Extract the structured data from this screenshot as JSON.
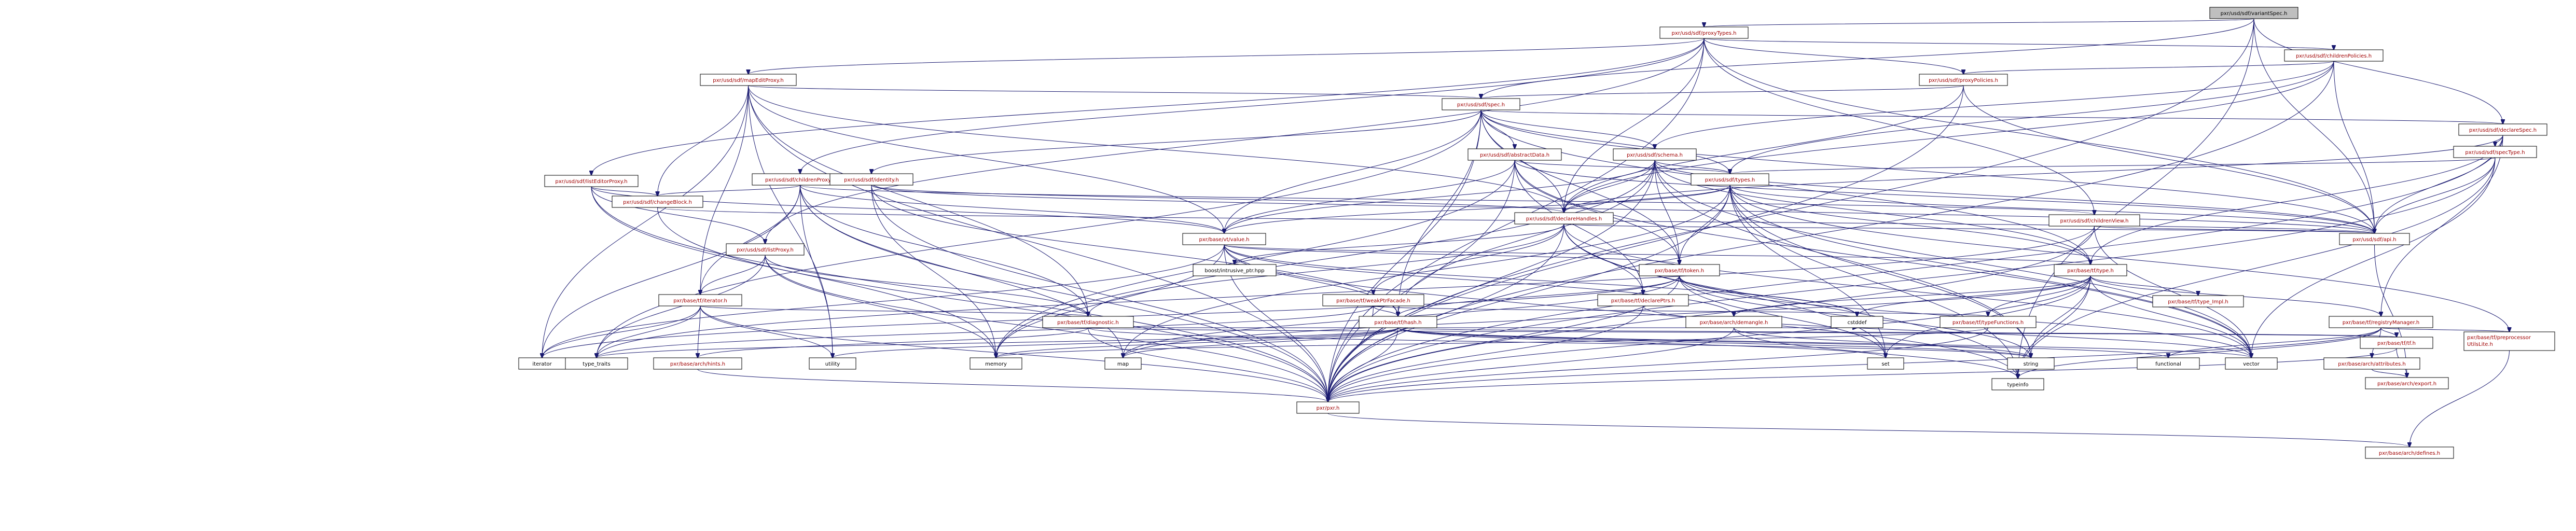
{
  "graph": {
    "root": "pxr/usd/sdf/variantSpec.h",
    "nodes": [
      {
        "id": "root",
        "label": "pxr/usd/sdf/variantSpec.h",
        "kind": "root"
      },
      {
        "id": "proxyTypes",
        "label": "pxr/usd/sdf/proxyTypes.h",
        "kind": "linked"
      },
      {
        "id": "childrenPolicies",
        "label": "pxr/usd/sdf/childrenPolicies.h",
        "kind": "linked"
      },
      {
        "id": "mapEditProxy",
        "label": "pxr/usd/sdf/mapEditProxy.h",
        "kind": "linked"
      },
      {
        "id": "proxyPolicies",
        "label": "pxr/usd/sdf/proxyPolicies.h",
        "kind": "linked"
      },
      {
        "id": "spec",
        "label": "pxr/usd/sdf/spec.h",
        "kind": "linked"
      },
      {
        "id": "declareSpec",
        "label": "pxr/usd/sdf/declareSpec.h",
        "kind": "linked"
      },
      {
        "id": "specType",
        "label": "pxr/usd/sdf/specType.h",
        "kind": "linked"
      },
      {
        "id": "abstractData",
        "label": "pxr/usd/sdf/abstractData.h",
        "kind": "linked"
      },
      {
        "id": "schema",
        "label": "pxr/usd/sdf/schema.h",
        "kind": "linked"
      },
      {
        "id": "childrenProxy",
        "label": "pxr/usd/sdf/childrenProxy.h",
        "kind": "linked"
      },
      {
        "id": "identity",
        "label": "pxr/usd/sdf/identity.h",
        "kind": "linked"
      },
      {
        "id": "listEditorProxy",
        "label": "pxr/usd/sdf/listEditorProxy.h",
        "kind": "linked"
      },
      {
        "id": "types",
        "label": "pxr/usd/sdf/types.h",
        "kind": "linked"
      },
      {
        "id": "changeBlock",
        "label": "pxr/usd/sdf/changeBlock.h",
        "kind": "linked"
      },
      {
        "id": "listProxy",
        "label": "pxr/usd/sdf/listProxy.h",
        "kind": "linked"
      },
      {
        "id": "childrenView",
        "label": "pxr/usd/sdf/childrenView.h",
        "kind": "linked"
      },
      {
        "id": "declareHandles",
        "label": "pxr/usd/sdf/declareHandles.h",
        "kind": "linked"
      },
      {
        "id": "api",
        "label": "pxr/usd/sdf/api.h",
        "kind": "linked"
      },
      {
        "id": "vtValue",
        "label": "pxr/base/vt/value.h",
        "kind": "linked"
      },
      {
        "id": "boostIntrusive",
        "label": "boost/intrusive_ptr.hpp",
        "kind": "plain"
      },
      {
        "id": "tfToken",
        "label": "pxr/base/tf/token.h",
        "kind": "linked"
      },
      {
        "id": "tfType",
        "label": "pxr/base/tf/type.h",
        "kind": "linked"
      },
      {
        "id": "weakPtrFacade",
        "label": "pxr/base/tf/weakPtrFacade.h",
        "kind": "linked"
      },
      {
        "id": "declarePtrs",
        "label": "pxr/base/tf/declarePtrs.h",
        "kind": "linked"
      },
      {
        "id": "tfIterator",
        "label": "pxr/base/tf/iterator.h",
        "kind": "linked"
      },
      {
        "id": "tfDiagnostic",
        "label": "pxr/base/tf/diagnostic.h",
        "kind": "linked"
      },
      {
        "id": "tfHash",
        "label": "pxr/base/tf/hash.h",
        "kind": "linked"
      },
      {
        "id": "typeFunctions",
        "label": "pxr/base/tf/typeFunctions.h",
        "kind": "linked"
      },
      {
        "id": "demangle",
        "label": "pxr/base/arch/demangle.h",
        "kind": "linked"
      },
      {
        "id": "typeImpl",
        "label": "pxr/base/tf/type_Impl.h",
        "kind": "linked"
      },
      {
        "id": "registryManager",
        "label": "pxr/base/tf/registryManager.h",
        "kind": "linked"
      },
      {
        "id": "preprocessorUtils",
        "label": "pxr/base/tf/preprocessorUtilsLite.h",
        "kind": "linked"
      },
      {
        "id": "archHints",
        "label": "pxr/base/arch/hints.h",
        "kind": "linked"
      },
      {
        "id": "archAttributes",
        "label": "pxr/base/arch/attributes.h",
        "kind": "linked"
      },
      {
        "id": "tfTf",
        "label": "pxr/base/tf/tf.h",
        "kind": "linked"
      },
      {
        "id": "archExport",
        "label": "pxr/base/arch/export.h",
        "kind": "linked"
      },
      {
        "id": "pxr",
        "label": "pxr/pxr.h",
        "kind": "linked"
      },
      {
        "id": "archDefines",
        "label": "pxr/base/arch/defines.h",
        "kind": "linked"
      },
      {
        "id": "iterator",
        "label": "iterator",
        "kind": "plain"
      },
      {
        "id": "typeTraits",
        "label": "type_traits",
        "kind": "plain"
      },
      {
        "id": "utility",
        "label": "utility",
        "kind": "plain"
      },
      {
        "id": "memory",
        "label": "memory",
        "kind": "plain"
      },
      {
        "id": "map",
        "label": "map",
        "kind": "plain"
      },
      {
        "id": "set",
        "label": "set",
        "kind": "plain"
      },
      {
        "id": "cstddef",
        "label": "cstddef",
        "kind": "plain"
      },
      {
        "id": "string",
        "label": "string",
        "kind": "plain"
      },
      {
        "id": "functional",
        "label": "functional",
        "kind": "plain"
      },
      {
        "id": "vector",
        "label": "vector",
        "kind": "plain"
      },
      {
        "id": "typeinfo",
        "label": "typeinfo",
        "kind": "plain"
      }
    ]
  }
}
